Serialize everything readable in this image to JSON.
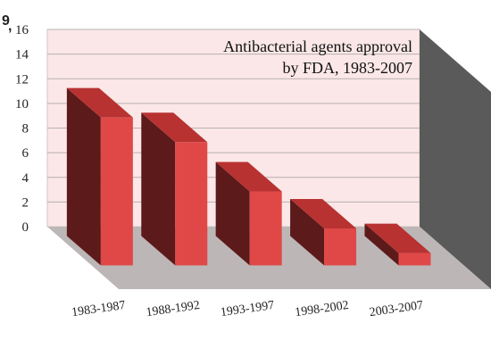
{
  "chart_data": {
    "type": "bar",
    "title_lines": [
      "Antibacterial agents approval",
      "by FDA, 1983-2007"
    ],
    "categories": [
      "1983-1987",
      "1988-1992",
      "1993-1997",
      "1998-2002",
      "2003-2007"
    ],
    "values": [
      12,
      10,
      6,
      3,
      1
    ],
    "yticks": [
      "0",
      "2",
      "4",
      "6",
      "8",
      "10",
      "12",
      "14",
      "16"
    ],
    "ylim": [
      0,
      16
    ],
    "grid": true,
    "three_d": true,
    "colors": {
      "bar_front": "#e04848",
      "bar_side": "#5c1a1a",
      "bar_top": "#b83232",
      "back_wall": "#fbe7e7",
      "floor": "#bdb6b6",
      "side_wall": "#5a5a5a",
      "gridline": "#b9b0b0"
    }
  },
  "corner_marks": [
    "9",
    ","
  ]
}
